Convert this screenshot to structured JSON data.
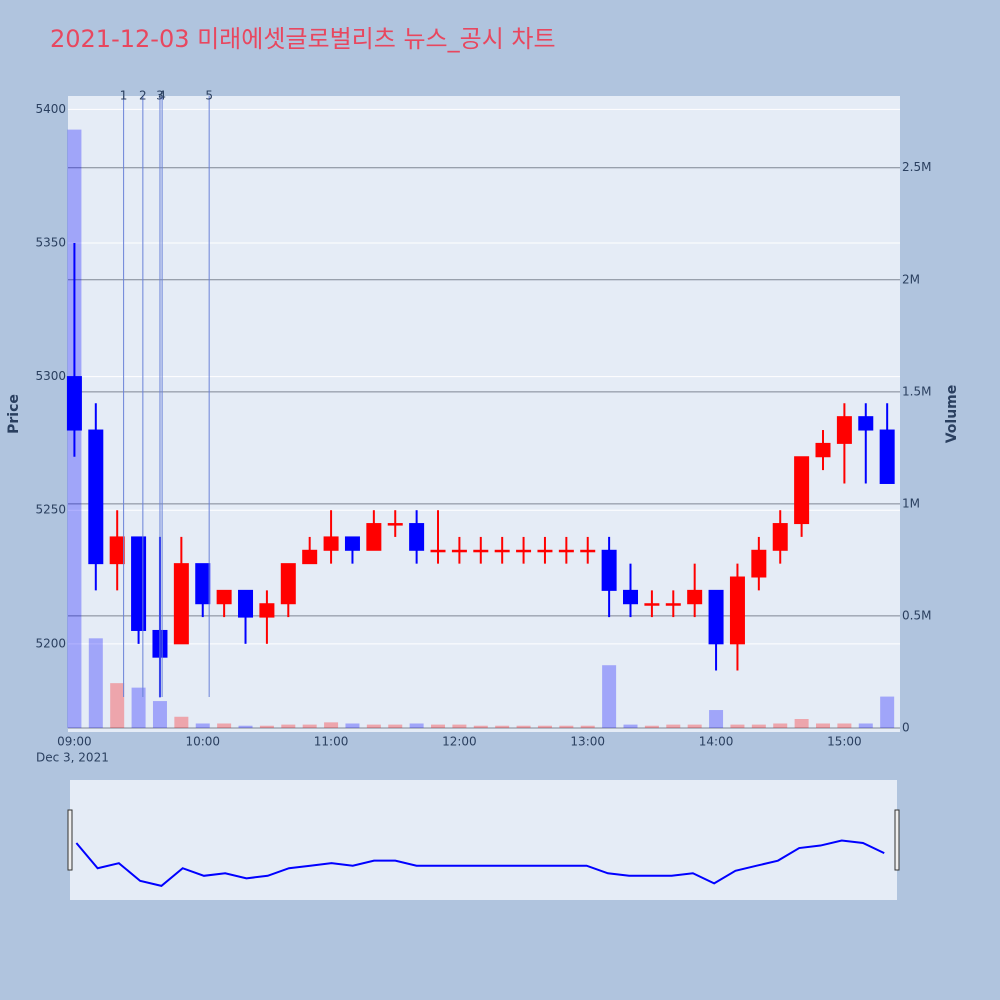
{
  "chart_data": {
    "type": "candlestick",
    "title": "2021-12-03 미래에셋글로벌리츠 뉴스_공시 차트",
    "y_label": "Price",
    "y2_label": "Volume",
    "x_sublabel": "Dec 3, 2021",
    "increasing_color": "#ff0000",
    "decreasing_color": "#0000ff",
    "x": [
      "09:00",
      "09:10",
      "09:20",
      "09:30",
      "09:40",
      "09:50",
      "10:00",
      "10:10",
      "10:20",
      "10:30",
      "10:40",
      "10:50",
      "11:00",
      "11:10",
      "11:20",
      "11:30",
      "11:40",
      "11:50",
      "12:00",
      "12:10",
      "12:20",
      "12:30",
      "12:40",
      "12:50",
      "13:00",
      "13:10",
      "13:20",
      "13:30",
      "13:40",
      "13:50",
      "14:00",
      "14:10",
      "14:20",
      "14:30",
      "14:40",
      "14:50",
      "15:00",
      "15:10",
      "15:20"
    ],
    "open": [
      5300,
      5280,
      5230,
      5240,
      5205,
      5200,
      5230,
      5215,
      5220,
      5210,
      5215,
      5230,
      5235,
      5240,
      5235,
      5245,
      5245,
      5235,
      5235,
      5235,
      5235,
      5235,
      5235,
      5235,
      5235,
      5235,
      5220,
      5215,
      5215,
      5215,
      5220,
      5200,
      5225,
      5235,
      5245,
      5270,
      5275,
      5285,
      5280
    ],
    "high": [
      5350,
      5290,
      5250,
      5240,
      5240,
      5240,
      5230,
      5220,
      5220,
      5220,
      5230,
      5240,
      5250,
      5240,
      5250,
      5250,
      5250,
      5250,
      5240,
      5240,
      5240,
      5240,
      5240,
      5240,
      5240,
      5240,
      5230,
      5220,
      5220,
      5230,
      5220,
      5230,
      5240,
      5250,
      5270,
      5280,
      5290,
      5290,
      5290
    ],
    "low": [
      5270,
      5220,
      5220,
      5200,
      5180,
      5200,
      5210,
      5210,
      5200,
      5200,
      5210,
      5230,
      5230,
      5230,
      5235,
      5240,
      5230,
      5230,
      5230,
      5230,
      5230,
      5230,
      5230,
      5230,
      5230,
      5210,
      5210,
      5210,
      5210,
      5210,
      5190,
      5190,
      5220,
      5230,
      5240,
      5265,
      5260,
      5260,
      5260
    ],
    "close": [
      5280,
      5230,
      5240,
      5205,
      5195,
      5230,
      5215,
      5220,
      5210,
      5215,
      5230,
      5235,
      5240,
      5235,
      5245,
      5245,
      5235,
      5235,
      5235,
      5235,
      5235,
      5235,
      5235,
      5235,
      5235,
      5220,
      5215,
      5215,
      5215,
      5220,
      5200,
      5225,
      5235,
      5245,
      5270,
      5275,
      5285,
      5280,
      5260
    ],
    "volume": [
      2670000,
      400000,
      200000,
      180000,
      120000,
      50000,
      20000,
      20000,
      10000,
      10000,
      15000,
      15000,
      25000,
      20000,
      15000,
      15000,
      20000,
      15000,
      15000,
      10000,
      10000,
      10000,
      10000,
      10000,
      10000,
      280000,
      15000,
      10000,
      15000,
      15000,
      80000,
      15000,
      15000,
      20000,
      40000,
      20000,
      20000,
      20000,
      140000
    ],
    "xlim": [
      "08:57",
      "15:26"
    ],
    "xticks": [
      "09:00",
      "10:00",
      "11:00",
      "12:00",
      "13:00",
      "14:00",
      "15:00"
    ],
    "ylim": [
      5167,
      5405
    ],
    "yticks": [
      5200,
      5250,
      5300,
      5350,
      5400
    ],
    "y2lim": [
      -18000,
      2820000
    ],
    "y2ticks": [
      0,
      {
        "value": 500000,
        "label": "0.5M"
      },
      {
        "value": 1000000,
        "label": "1M"
      },
      {
        "value": 1500000,
        "label": "1.5M"
      },
      {
        "value": 2000000,
        "label": "2M"
      },
      {
        "value": 2500000,
        "label": "2.5M"
      }
    ],
    "annotations": [
      {
        "x": "09:23",
        "label": "1"
      },
      {
        "x": "09:32",
        "label": "2"
      },
      {
        "x": "09:40",
        "label": "3"
      },
      {
        "x": "09:41",
        "label": "4"
      },
      {
        "x": "10:03",
        "label": "5"
      }
    ]
  }
}
